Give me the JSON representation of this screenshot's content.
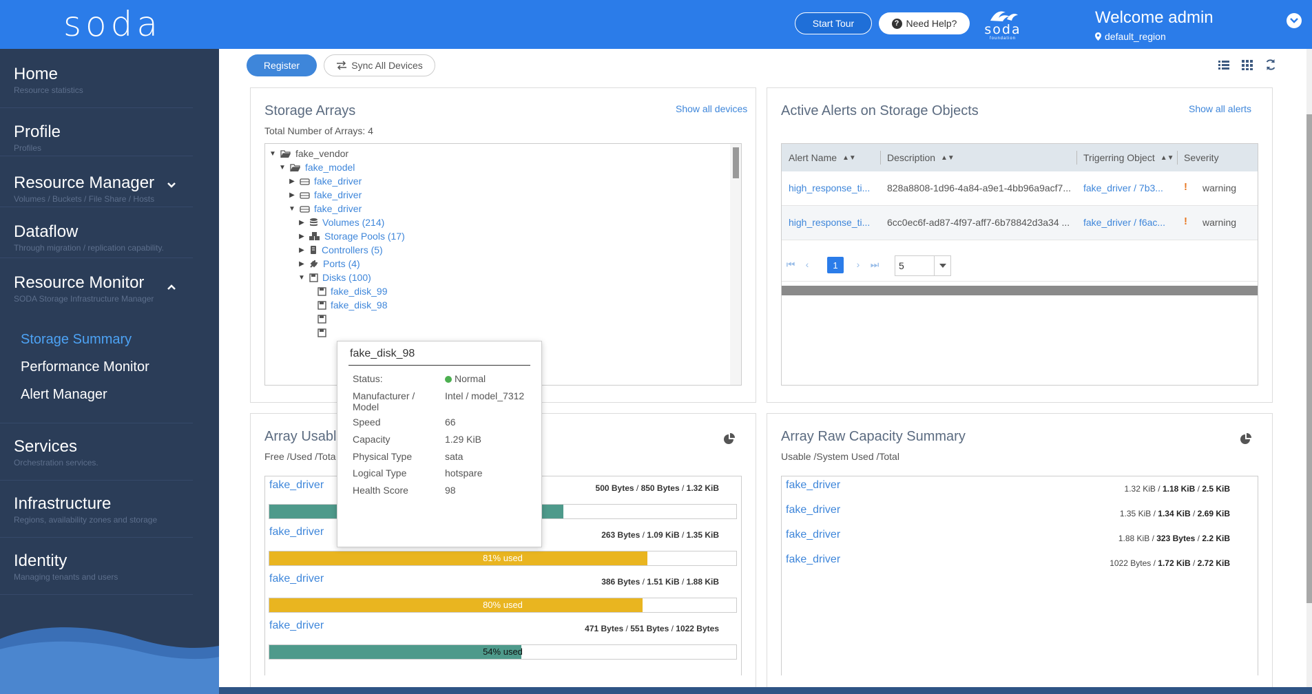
{
  "header": {
    "logo": "soda",
    "start_tour": "Start Tour",
    "need_help": "Need Help?",
    "brand_small": "soda",
    "brand_small_sub": "foundation",
    "welcome": "Welcome admin",
    "region": "default_region"
  },
  "sidebar": {
    "items": [
      {
        "title": "Home",
        "sub": "Resource statistics"
      },
      {
        "title": "Profile",
        "sub": "Profiles"
      },
      {
        "title": "Resource Manager",
        "sub": "Volumes / Buckets / File Share / Hosts"
      },
      {
        "title": "Dataflow",
        "sub": "Through migration / replication capability."
      },
      {
        "title": "Resource Monitor",
        "sub": "SODA Storage Infrastructure Manager"
      },
      {
        "title": "Services",
        "sub": "Orchestration services."
      },
      {
        "title": "Infrastructure",
        "sub": "Regions, availability zones and storage"
      },
      {
        "title": "Identity",
        "sub": "Managing tenants and users"
      }
    ],
    "monitor_links": [
      "Storage Summary",
      "Performance Monitor",
      "Alert Manager"
    ]
  },
  "toolbar": {
    "register": "Register",
    "sync": "Sync All Devices"
  },
  "storage_arrays": {
    "title": "Storage Arrays",
    "sub": "Total Number of Arrays: 4",
    "link": "Show all devices",
    "tree": [
      "fake_vendor",
      "fake_model",
      "fake_driver",
      "fake_driver",
      "fake_driver",
      "Volumes (214)",
      "Storage Pools (17)",
      "Controllers (5)",
      "Ports (4)",
      "Disks (100)",
      "fake_disk_99",
      "fake_disk_98"
    ]
  },
  "alerts": {
    "title": "Active Alerts on Storage Objects",
    "link": "Show all alerts",
    "columns": [
      "Alert Name",
      "Description",
      "Trigerring Object",
      "Severity"
    ],
    "rows": [
      {
        "name": "high_response_ti...",
        "desc": "828a8808-1d96-4a84-a9e1-4bb96a9acf7...",
        "object": "fake_driver / 7b3...",
        "severity": "warning"
      },
      {
        "name": "high_response_ti...",
        "desc": "6cc0ec6f-ad87-4f97-aff7-6b78842d3a34 ...",
        "object": "fake_driver / f6ac...",
        "severity": "warning"
      }
    ],
    "page": "1",
    "page_size": "5"
  },
  "usable": {
    "title": "Array Usable Capacity Summary",
    "title_visible": "Array Usabl",
    "sub": "Free /Used /Total",
    "sub_visible": "Free /Used /Tota",
    "rows": [
      {
        "name": "fake_driver",
        "free": "500 Bytes",
        "used": "850 Bytes",
        "total": "1.32 KiB",
        "pct": 63,
        "label": "",
        "color": "#4e9a8b"
      },
      {
        "name": "fake_driver",
        "free": "263 Bytes",
        "used": "1.09 KiB",
        "total": "1.35 KiB",
        "pct": 81,
        "label": "81% used",
        "color": "#e9b520"
      },
      {
        "name": "fake_driver",
        "free": "386 Bytes",
        "used": "1.51 KiB",
        "total": "1.88 KiB",
        "pct": 80,
        "label": "80% used",
        "color": "#e9b520"
      },
      {
        "name": "fake_driver",
        "free": "471 Bytes",
        "used": "551 Bytes",
        "total": "1022 Bytes",
        "pct": 54,
        "label": "54% used",
        "color": "#4e9a8b"
      }
    ]
  },
  "raw": {
    "title": "Array Raw Capacity Summary",
    "sub": "Usable /System Used /Total",
    "rows": [
      {
        "name": "fake_driver",
        "usable": "1.32 KiB",
        "sys": "1.18 KiB",
        "total": "2.5 KiB"
      },
      {
        "name": "fake_driver",
        "usable": "1.35 KiB",
        "sys": "1.34 KiB",
        "total": "2.69 KiB"
      },
      {
        "name": "fake_driver",
        "usable": "1.88 KiB",
        "sys": "323 Bytes",
        "total": "2.2 KiB"
      },
      {
        "name": "fake_driver",
        "usable": "1022 Bytes",
        "sys": "1.72 KiB",
        "total": "2.72 KiB"
      }
    ]
  },
  "tooltip": {
    "title": "fake_disk_98",
    "rows": [
      {
        "k": "Status:",
        "v": "Normal"
      },
      {
        "k": "Manufacturer / Model",
        "v": "Intel / model_7312"
      },
      {
        "k": "Speed",
        "v": "66"
      },
      {
        "k": "Capacity",
        "v": "1.29 KiB"
      },
      {
        "k": "Physical Type",
        "v": "sata"
      },
      {
        "k": "Logical Type",
        "v": "hotspare"
      },
      {
        "k": "Health Score",
        "v": "98"
      }
    ]
  }
}
